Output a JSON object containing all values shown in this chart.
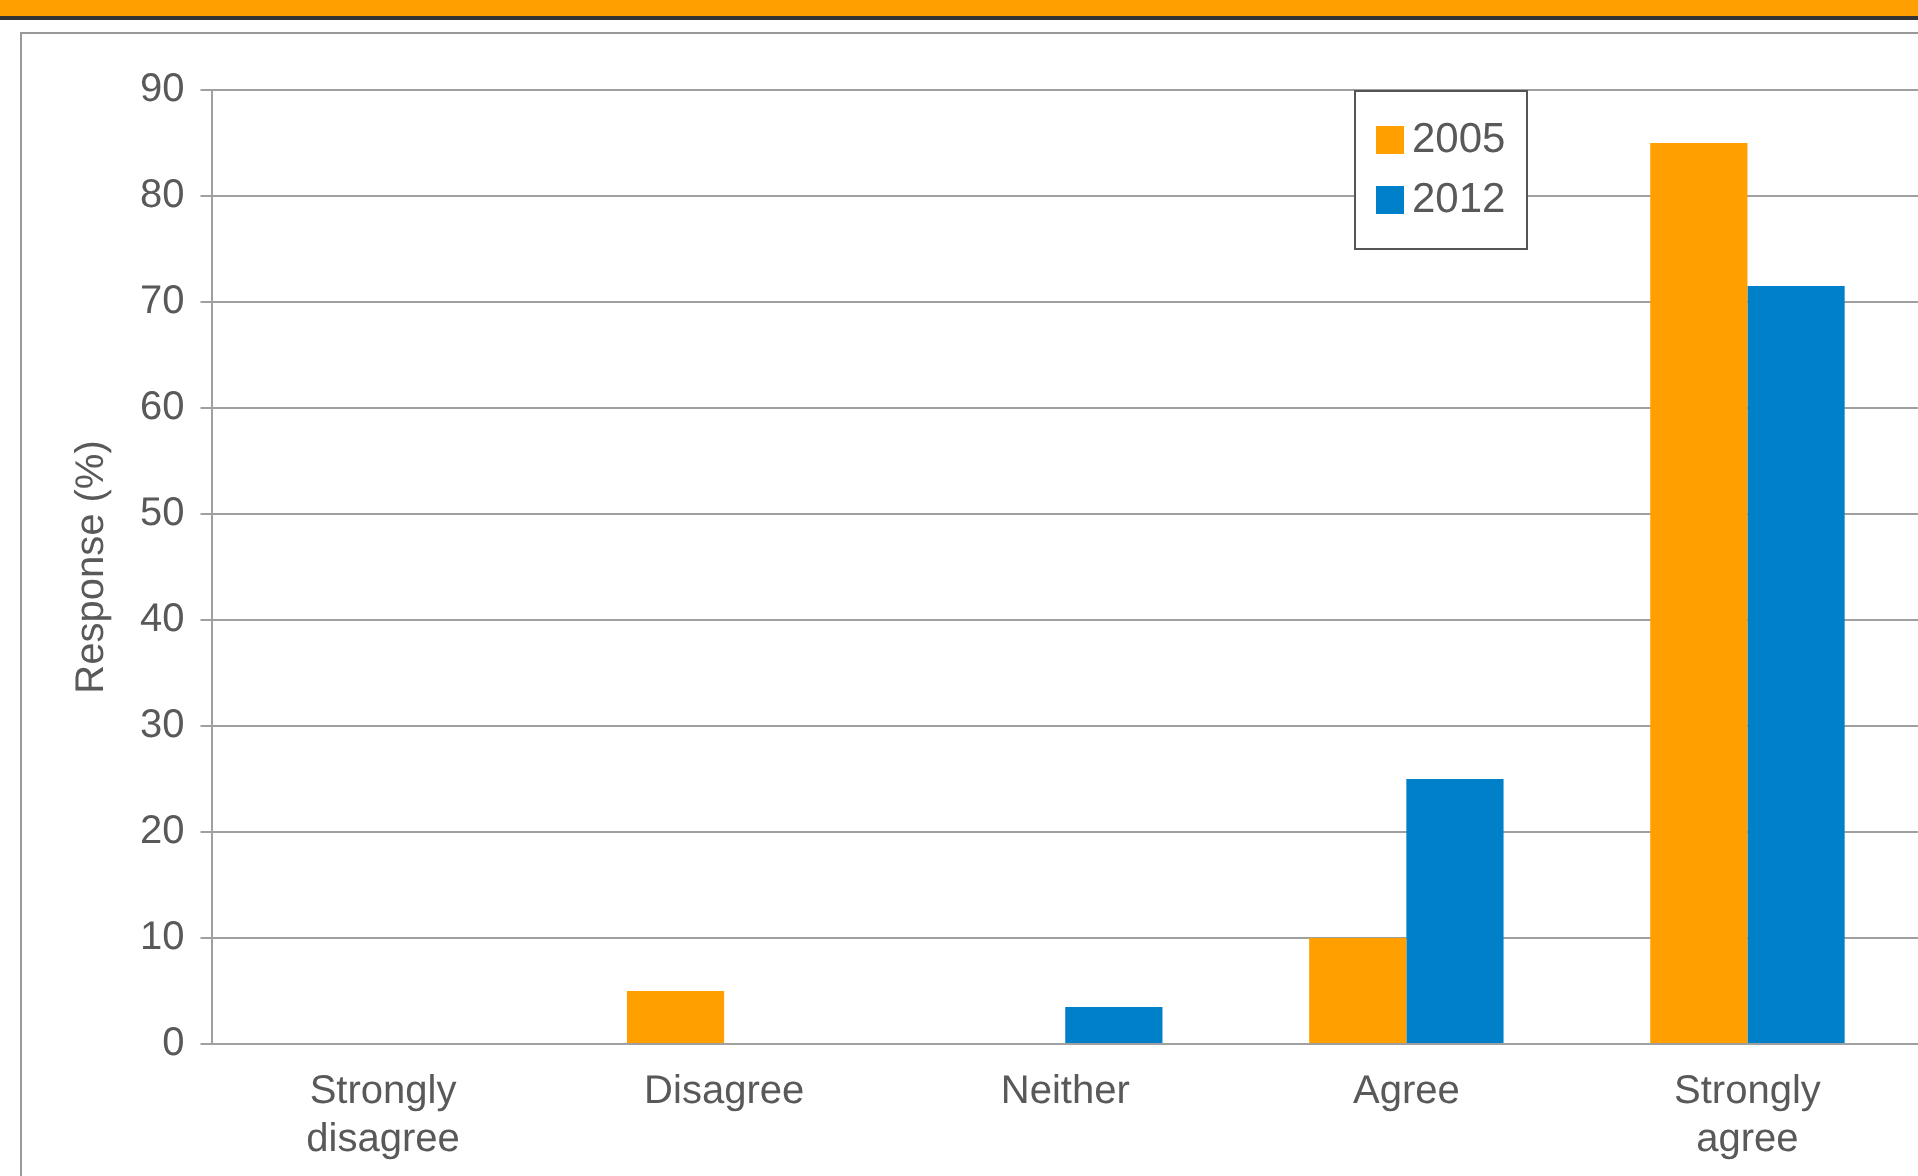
{
  "chart_data": {
    "type": "bar",
    "ylabel": "Response (%)",
    "categories": [
      "Strongly disagree",
      "Disagree",
      "Neither",
      "Agree",
      "Strongly agree"
    ],
    "series": [
      {
        "name": "2005",
        "color": "#ffa000",
        "values": [
          0,
          5,
          0,
          10,
          85
        ]
      },
      {
        "name": "2012",
        "color": "#0080c8",
        "values": [
          0,
          0,
          3.5,
          25,
          71.5
        ]
      }
    ],
    "ylim": [
      0,
      90
    ],
    "yticks": [
      0,
      10,
      20,
      30,
      40,
      50,
      60,
      70,
      80,
      90
    ],
    "grid": "y",
    "legend": "top right"
  }
}
